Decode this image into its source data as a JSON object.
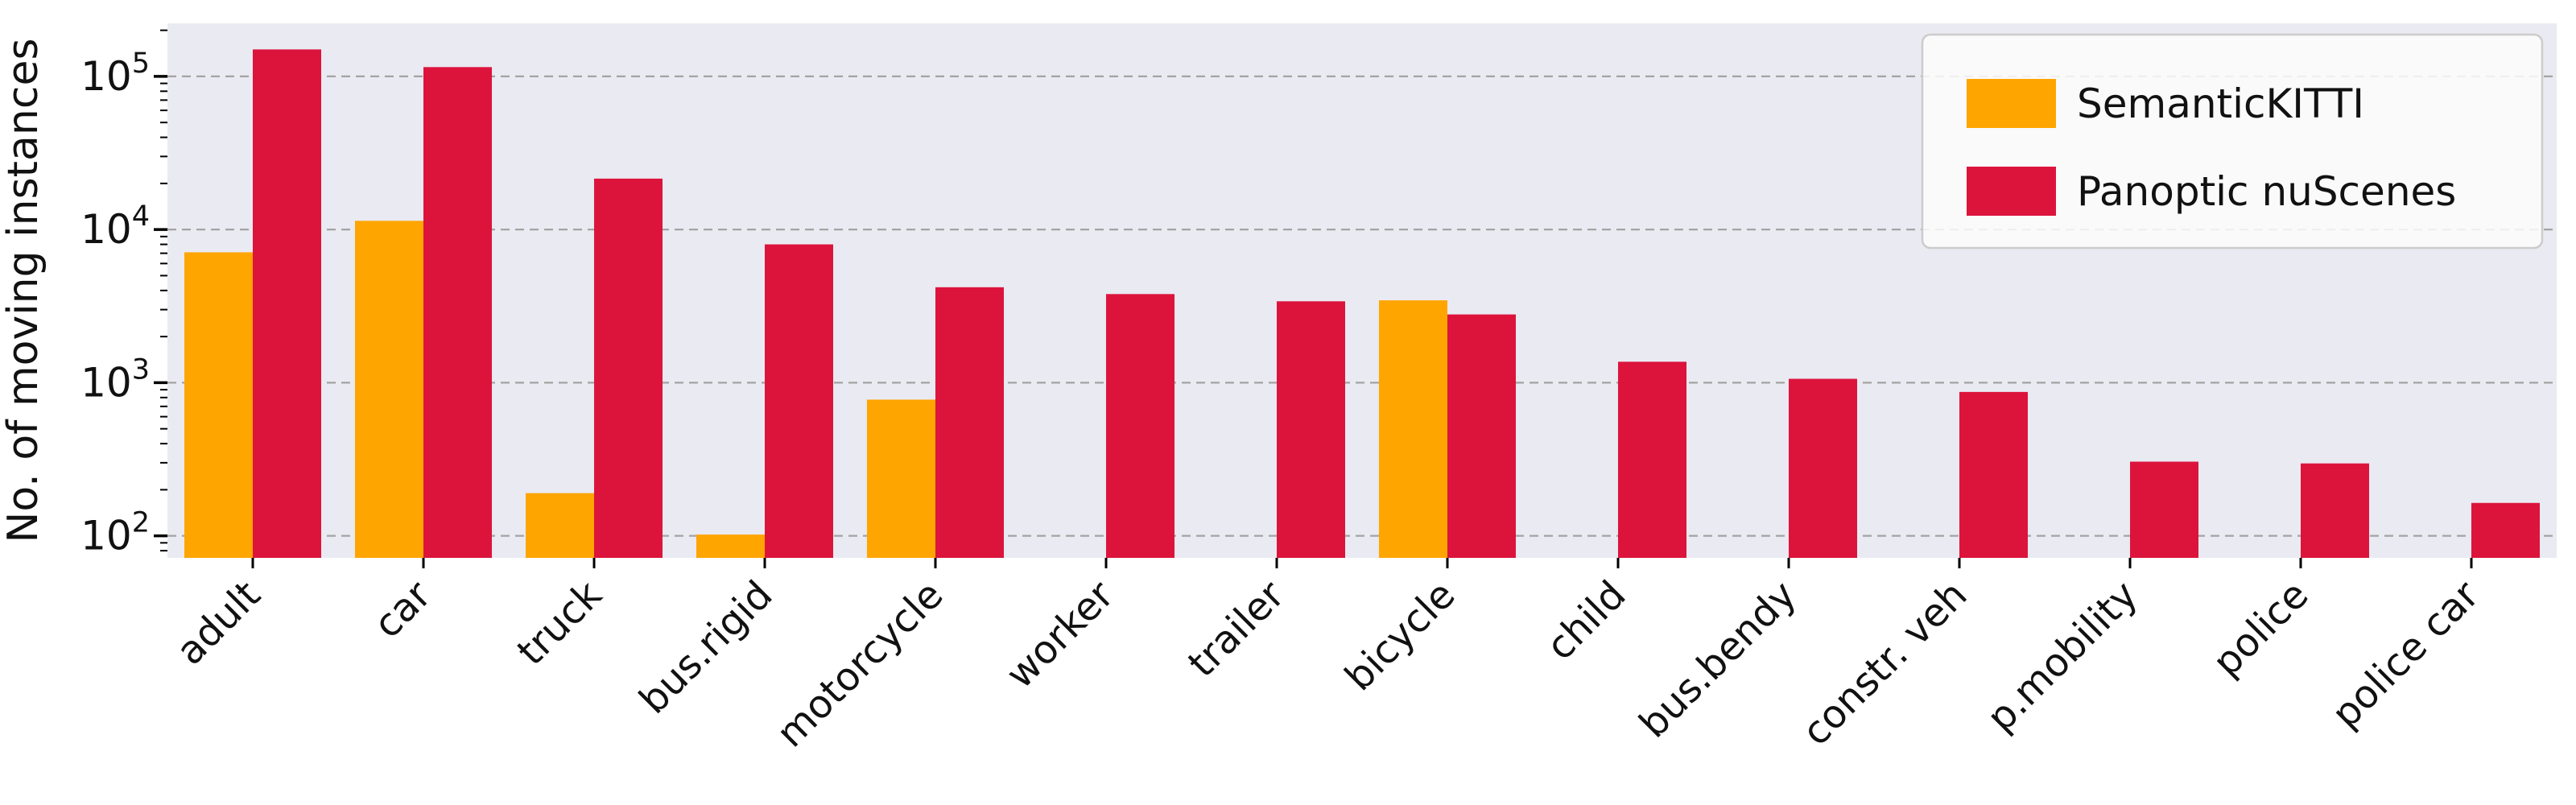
{
  "figure": {
    "background": "#ffffff",
    "plot_background": "#eaeaf2",
    "grid_color": "#a3a3a3",
    "tick_color": "#000000"
  },
  "legend": {
    "position": "upper right",
    "box_fill": "#fdfdfd",
    "box_border": "#cccccc"
  },
  "chart_data": {
    "type": "bar",
    "title": "",
    "xlabel": "",
    "ylabel": "No. of moving instances",
    "y_scale": "log",
    "ylim": [
      71.8,
      222000
    ],
    "grid": "major-y-dashed",
    "legend_position": "upper right",
    "categories": [
      "adult",
      "car",
      "truck",
      "bus.rigid",
      "motorcycle",
      "worker",
      "trailer",
      "bicycle",
      "child",
      "bus.bendy",
      "constr. veh",
      "p.mobility",
      "police",
      "police car"
    ],
    "series": [
      {
        "name": "SemanticKITTI",
        "color": "#FFA500",
        "values": [
          7100,
          11400,
          190,
          102,
          775,
          null,
          null,
          3450,
          null,
          null,
          null,
          null,
          null,
          null
        ]
      },
      {
        "name": "Panoptic nuScenes",
        "color": "#DC143C",
        "values": [
          150000,
          115000,
          21500,
          8000,
          4200,
          3790,
          3400,
          2790,
          1370,
          1060,
          870,
          305,
          297,
          164
        ]
      }
    ],
    "y_ticks": [
      {
        "base": "10",
        "exp": "2",
        "value": 100
      },
      {
        "base": "10",
        "exp": "3",
        "value": 1000
      },
      {
        "base": "10",
        "exp": "4",
        "value": 10000
      },
      {
        "base": "10",
        "exp": "5",
        "value": 100000
      }
    ]
  }
}
